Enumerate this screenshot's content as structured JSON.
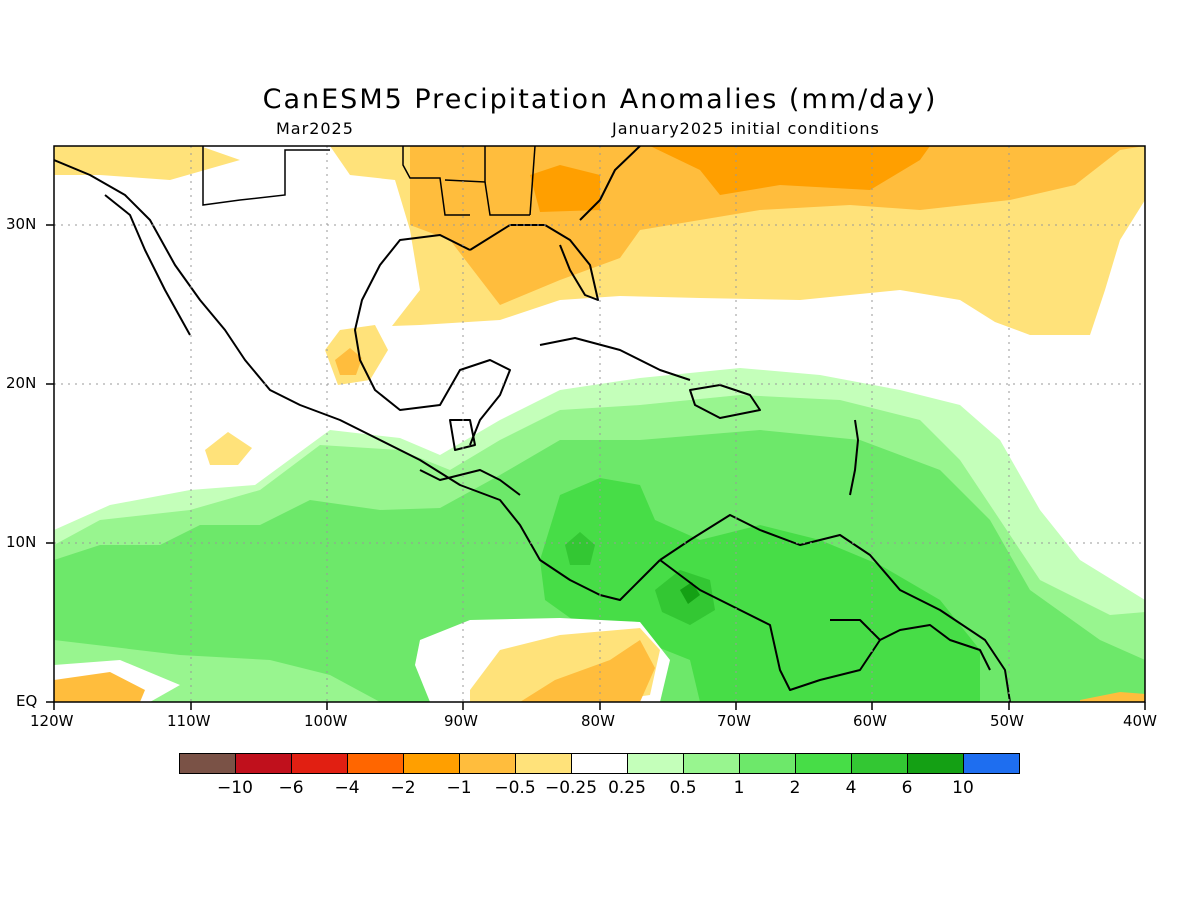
{
  "header": {
    "title": "CanESM5 Precipitation Anomalies (mm/day)",
    "subtitle_left": "Mar2025",
    "subtitle_right": "January2025 initial conditions"
  },
  "map": {
    "lon_range": [
      -120,
      -40
    ],
    "lat_range": [
      0,
      35
    ],
    "x_ticks": [
      "120W",
      "110W",
      "100W",
      "90W",
      "80W",
      "70W",
      "60W",
      "50W",
      "40W"
    ],
    "y_ticks": [
      "EQ",
      "10N",
      "20N",
      "30N"
    ],
    "gridlines": "dotted"
  },
  "colorbar": {
    "colors": [
      "#7a5246",
      "#c0101c",
      "#e11f12",
      "#ff6600",
      "#ff9f00",
      "#ffbd3d",
      "#ffe27a",
      "#ffffff",
      "#c4ffba",
      "#98f58f",
      "#6de86a",
      "#47dd47",
      "#33c733",
      "#14a014",
      "#1e6ef0"
    ],
    "labels": [
      "-10",
      "-6",
      "-4",
      "-2",
      "-1",
      "-0.5",
      "-0.25",
      "0.25",
      "0.5",
      "1",
      "2",
      "4",
      "6",
      "10"
    ]
  }
}
